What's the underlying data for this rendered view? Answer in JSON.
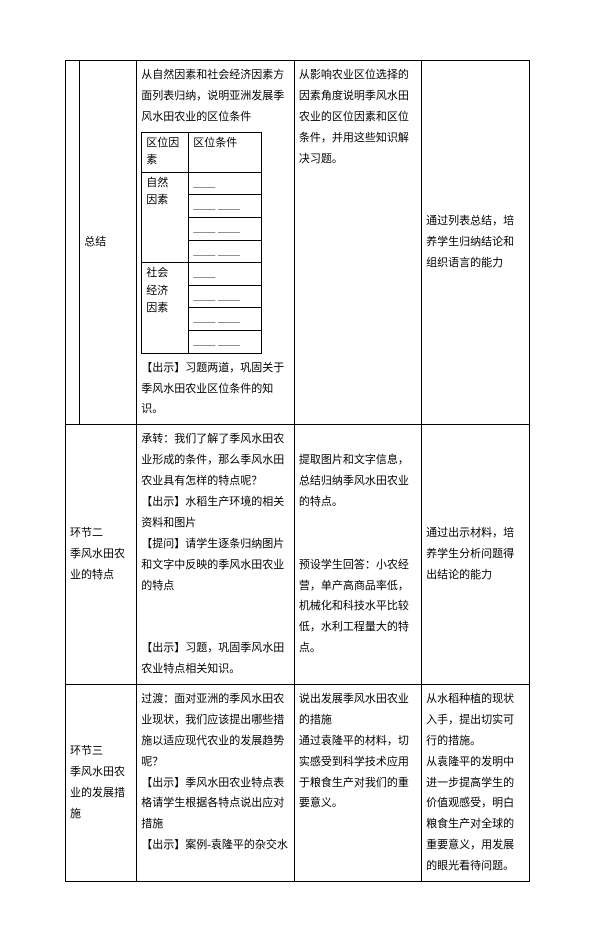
{
  "table": {
    "row1": {
      "narrow": "",
      "phase": "总结",
      "teach_intro": "从自然因素和社会经济因素方面列表归纳，说明亚洲发展季风水田农业的区位条件",
      "inner": {
        "h1": "区位因素",
        "h2": "区位条件",
        "cat1": "自然\n因素",
        "cat2": "社会\n经济\n因素",
        "blank1": "＿＿",
        "blank2": "＿＿ ＿＿",
        "blank3": "＿＿ ＿＿",
        "blank4": "＿＿ ＿＿",
        "blank5": "＿＿",
        "blank6": "＿＿ ＿＿",
        "blank7": "＿＿ ＿＿",
        "blank8": "＿＿ ＿＿"
      },
      "teach_after": "【出示】习题两道，巩固关于季风水田农业区位条件的知识。",
      "student": "从影响农业区位选择的因素角度说明季风水田农业的区位因素和区位条件，并用这些知识解决习题。",
      "intent": "通过列表总结，培养学生归纳结论和组织语言的能力"
    },
    "row2": {
      "phase": "环节二\n季风水田农业的特点",
      "teach": "承转：我们了解了季风水田农业形成的条件，那么季风水田农业具有怎样的特点呢？\n【出示】水稻生产环境的相关资料和图片\n【提问】请学生逐条归纳图片和文字中反映的季风水田农业的特点\n\n【出示】习题，巩固季风水田农业特点相关知识。",
      "student": "提取图片和文字信息，总结归纳季风水田农业的特点。\n\n预设学生回答：小农经营，单产高商品率低，机械化和科技水平比较低，水利工程量大的特点。",
      "intent": "通过出示材料，培养学生分析问题得出结论的能力"
    },
    "row3": {
      "phase": "环节三\n季风水田农业的发展措施",
      "teach": "过渡：面对亚洲的季风水田农业现状，我们应该提出哪些措施以适应现代农业的发展趋势呢？\n【出示】季风水田农业特点表格请学生根据各特点说出应对措施\n【出示】案例-袁隆平的杂交水",
      "student": "说出发展季风水田农业的措施\n通过袁隆平的材料，切实感受到科学技术应用于粮食生产对我们的重要意义。",
      "intent": "从水稻种植的现状入手，提出切实可行的措施。\n从袁隆平的发明中进一步提高学生的价值观感受，明白粮食生产对全球的重要意义，用发展的眼光看待问题。"
    }
  },
  "style": {
    "border_color": "#000000",
    "background_color": "#ffffff",
    "text_color": "#000000",
    "font_size_body": 11,
    "line_height": 1.9
  }
}
